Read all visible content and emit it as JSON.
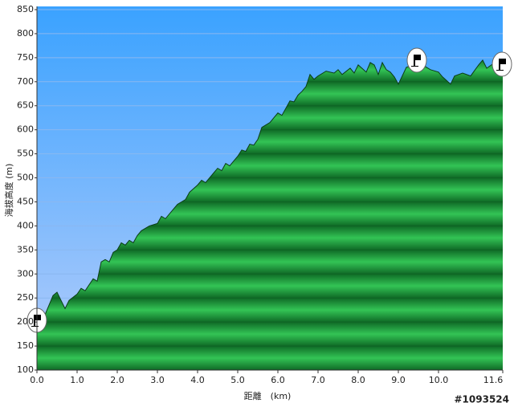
{
  "chart_data": {
    "type": "area",
    "xlabel": "距離　(km)",
    "ylabel": "海拔高度 (m)",
    "watermark": "#1093524",
    "xlim": [
      0,
      11.6
    ],
    "ylim": [
      100,
      850
    ],
    "xticks": [
      {
        "value": 0,
        "label": "0.0"
      },
      {
        "value": 1,
        "label": "1.0"
      },
      {
        "value": 2,
        "label": "2.0"
      },
      {
        "value": 3,
        "label": "3.0"
      },
      {
        "value": 4,
        "label": "4.0"
      },
      {
        "value": 5,
        "label": "5.0"
      },
      {
        "value": 6,
        "label": "6.0"
      },
      {
        "value": 7,
        "label": "7.0"
      },
      {
        "value": 8,
        "label": "8.0"
      },
      {
        "value": 9,
        "label": "9.0"
      },
      {
        "value": 10,
        "label": "10.0"
      },
      {
        "value": 11.6,
        "label": "11.6"
      }
    ],
    "yticks": [
      100,
      150,
      200,
      250,
      300,
      350,
      400,
      450,
      500,
      550,
      600,
      650,
      700,
      750,
      800,
      850
    ],
    "grid": true,
    "series": [
      {
        "color": "#1f9a3a",
        "x": [
          0,
          0.2,
          0.4,
          0.5,
          0.6,
          0.7,
          0.8,
          1.0,
          1.1,
          1.2,
          1.4,
          1.5,
          1.6,
          1.7,
          1.8,
          1.9,
          2.0,
          2.1,
          2.2,
          2.3,
          2.4,
          2.5,
          2.6,
          2.8,
          3.0,
          3.1,
          3.2,
          3.4,
          3.5,
          3.6,
          3.7,
          3.8,
          4.0,
          4.1,
          4.2,
          4.4,
          4.5,
          4.6,
          4.7,
          4.8,
          5.0,
          5.1,
          5.2,
          5.3,
          5.4,
          5.5,
          5.6,
          5.8,
          6.0,
          6.1,
          6.2,
          6.3,
          6.4,
          6.5,
          6.6,
          6.7,
          6.8,
          6.9,
          7.0,
          7.2,
          7.4,
          7.5,
          7.6,
          7.8,
          7.9,
          8.0,
          8.2,
          8.3,
          8.4,
          8.5,
          8.6,
          8.7,
          8.8,
          8.9,
          9.0,
          9.2,
          9.4,
          9.6,
          9.8,
          10.0,
          10.1,
          10.3,
          10.4,
          10.6,
          10.8,
          11.0,
          11.1,
          11.2,
          11.4,
          11.6
        ],
        "values": [
          190,
          215,
          255,
          262,
          245,
          228,
          245,
          258,
          270,
          265,
          290,
          285,
          325,
          330,
          325,
          345,
          350,
          365,
          360,
          370,
          365,
          380,
          390,
          400,
          405,
          420,
          415,
          435,
          445,
          450,
          455,
          470,
          485,
          495,
          490,
          510,
          520,
          515,
          530,
          525,
          545,
          558,
          555,
          570,
          568,
          580,
          605,
          615,
          635,
          630,
          645,
          660,
          658,
          672,
          680,
          690,
          715,
          705,
          712,
          722,
          718,
          725,
          715,
          728,
          718,
          735,
          720,
          740,
          735,
          715,
          740,
          725,
          720,
          710,
          695,
          730,
          735,
          735,
          725,
          720,
          710,
          695,
          712,
          718,
          712,
          735,
          745,
          728,
          740,
          735
        ]
      }
    ]
  }
}
